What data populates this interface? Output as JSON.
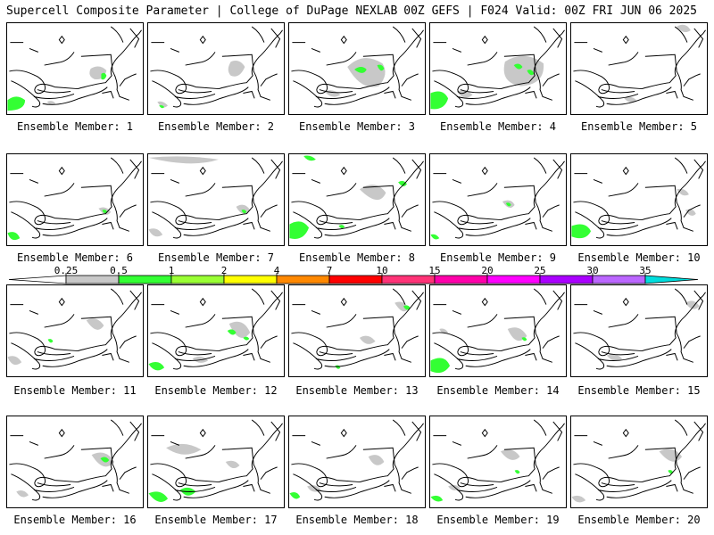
{
  "header": {
    "left": "Supercell Composite Parameter | College of DuPage NEXLAB",
    "right": "00Z GEFS | F024 Valid: 00Z FRI JUN 06 2025"
  },
  "panel_label_prefix": "Ensemble Member:",
  "members": [
    {
      "id": "1"
    },
    {
      "id": "2"
    },
    {
      "id": "3"
    },
    {
      "id": "4"
    },
    {
      "id": "5"
    },
    {
      "id": "6"
    },
    {
      "id": "7"
    },
    {
      "id": "8"
    },
    {
      "id": "9"
    },
    {
      "id": "10"
    },
    {
      "id": "11"
    },
    {
      "id": "12"
    },
    {
      "id": "13"
    },
    {
      "id": "14"
    },
    {
      "id": "15"
    },
    {
      "id": "16"
    },
    {
      "id": "17"
    },
    {
      "id": "18"
    },
    {
      "id": "19"
    },
    {
      "id": "20"
    }
  ],
  "colorbar": {
    "labels": [
      "0.25",
      "0.5",
      "1",
      "2",
      "4",
      "7",
      "10",
      "15",
      "20",
      "25",
      "30",
      "35"
    ],
    "colors": [
      "#c8c8c8",
      "#33ff33",
      "#99ff33",
      "#ffff00",
      "#ff8800",
      "#ff0000",
      "#ff3377",
      "#ff00aa",
      "#ff00ff",
      "#aa00ff",
      "#bb66ff",
      "#00dddd"
    ]
  },
  "colors": {
    "light_gray_contour": "#c8c8c8",
    "green_contour": "#33ff33"
  }
}
